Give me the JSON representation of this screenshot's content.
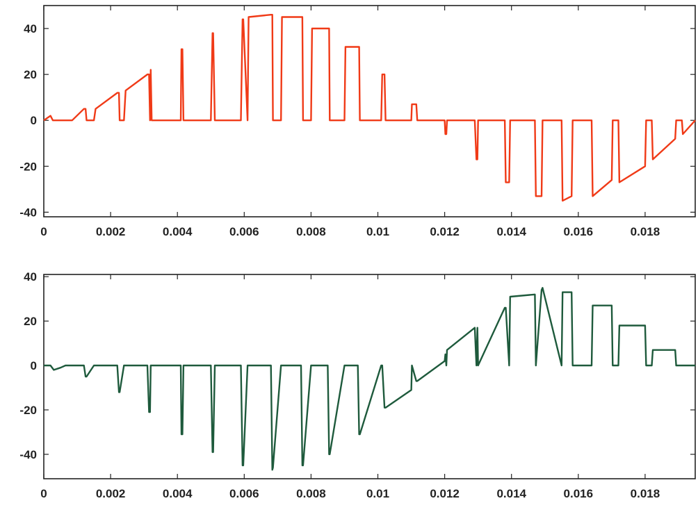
{
  "chart_data": [
    {
      "type": "line",
      "title": "",
      "xlabel": "",
      "ylabel": "",
      "xlim": [
        0,
        0.0195
      ],
      "ylim": [
        -42,
        50
      ],
      "x_ticks": [
        0,
        0.002,
        0.004,
        0.006,
        0.008,
        0.01,
        0.012,
        0.014,
        0.016,
        0.018
      ],
      "x_tick_labels": [
        "0",
        "0.002",
        "0.004",
        "0.006",
        "0.008",
        "0.01",
        "0.012",
        "0.014",
        "0.016",
        "0.018"
      ],
      "y_ticks": [
        -40,
        -20,
        0,
        20,
        40
      ],
      "y_tick_labels": [
        "-40",
        "-20",
        "0",
        "20",
        "40"
      ],
      "grid": false,
      "legend": "none",
      "color": "#f03a17",
      "series": [
        {
          "x": [
            0,
            0.0002,
            0.00027,
            0.0003,
            0.0005,
            0.00085,
            0.0012,
            0.00125,
            0.00128,
            0.0015,
            0.00155,
            0.0022,
            0.00225,
            0.00227,
            0.0024,
            0.00245,
            0.0031,
            0.00315,
            0.00318,
            0.0032,
            0.00323,
            0.0041,
            0.00412,
            0.00415,
            0.00418,
            0.005,
            0.00505,
            0.00507,
            0.00512,
            0.0059,
            0.00595,
            0.00597,
            0.0061,
            0.00613,
            0.0068,
            0.00684,
            0.00686,
            0.0071,
            0.00713,
            0.0077,
            0.00774,
            0.00776,
            0.008,
            0.00803,
            0.0085,
            0.00854,
            0.00856,
            0.009,
            0.00903,
            0.0094,
            0.00944,
            0.00946,
            0.0101,
            0.01013,
            0.0102,
            0.01023,
            0.011,
            0.01102,
            0.01115,
            0.01118,
            0.012,
            0.01202,
            0.01205,
            0.01207,
            0.0129,
            0.01295,
            0.01298,
            0.013,
            0.0138,
            0.01383,
            0.01393,
            0.01396,
            0.0147,
            0.01473,
            0.0149,
            0.01493,
            0.0155,
            0.01553,
            0.0158,
            0.01583,
            0.0164,
            0.01643,
            0.017,
            0.01703,
            0.0172,
            0.01723,
            0.018,
            0.01803,
            0.0182,
            0.01823,
            0.0189,
            0.01893,
            0.0191,
            0.01913,
            0.0195
          ],
          "y": [
            0,
            2,
            0,
            0,
            0,
            0,
            5,
            5,
            0,
            0,
            5,
            12,
            12,
            0,
            0,
            13,
            20,
            20,
            0,
            22,
            0,
            0,
            31,
            31,
            0,
            0,
            38,
            38,
            0,
            0,
            44,
            44,
            0,
            45,
            46,
            46,
            0,
            0,
            45,
            45,
            45,
            0,
            0,
            40,
            40,
            40,
            0,
            0,
            32,
            32,
            32,
            0,
            0,
            20,
            20,
            0,
            0,
            7,
            7,
            0,
            0,
            -6,
            -6,
            0,
            0,
            -17,
            -17,
            0,
            0,
            -27,
            -27,
            0,
            0,
            -33,
            -33,
            0,
            0,
            -35,
            -33,
            0,
            0,
            -33,
            -26,
            0,
            0,
            -27,
            -20,
            0,
            0,
            -17,
            -8,
            0,
            0,
            -6,
            0
          ]
        }
      ]
    },
    {
      "type": "line",
      "title": "",
      "xlabel": "",
      "ylabel": "",
      "xlim": [
        0,
        0.0195
      ],
      "ylim": [
        -51,
        41
      ],
      "x_ticks": [
        0,
        0.002,
        0.004,
        0.006,
        0.008,
        0.01,
        0.012,
        0.014,
        0.016,
        0.018
      ],
      "x_tick_labels": [
        "0",
        "0.002",
        "0.004",
        "0.006",
        "0.008",
        "0.01",
        "0.012",
        "0.014",
        "0.016",
        "0.018"
      ],
      "y_ticks": [
        -40,
        -20,
        0,
        20,
        40
      ],
      "y_tick_labels": [
        "-40",
        "-20",
        "0",
        "20",
        "40"
      ],
      "grid": false,
      "legend": "none",
      "color": "#1e5a3c",
      "series": [
        {
          "x": [
            0,
            0.0002,
            0.0003,
            0.0005,
            0.00065,
            0.0012,
            0.00125,
            0.00128,
            0.0015,
            0.00155,
            0.0022,
            0.00225,
            0.00227,
            0.0024,
            0.00245,
            0.0031,
            0.00315,
            0.00318,
            0.0032,
            0.00323,
            0.0041,
            0.00412,
            0.00415,
            0.00418,
            0.005,
            0.00505,
            0.00507,
            0.00512,
            0.0059,
            0.00595,
            0.00597,
            0.0061,
            0.00613,
            0.0068,
            0.00684,
            0.00686,
            0.0071,
            0.00713,
            0.0077,
            0.00774,
            0.00776,
            0.008,
            0.00803,
            0.0085,
            0.00854,
            0.00856,
            0.009,
            0.00903,
            0.0094,
            0.00944,
            0.00946,
            0.0101,
            0.01013,
            0.0102,
            0.01023,
            0.011,
            0.01102,
            0.01115,
            0.01118,
            0.012,
            0.01202,
            0.01205,
            0.01207,
            0.0129,
            0.01295,
            0.01298,
            0.013,
            0.0138,
            0.01383,
            0.01393,
            0.01396,
            0.0147,
            0.01473,
            0.0149,
            0.01493,
            0.0155,
            0.01553,
            0.0158,
            0.01583,
            0.0164,
            0.01643,
            0.017,
            0.01703,
            0.0172,
            0.01723,
            0.018,
            0.01803,
            0.0182,
            0.01823,
            0.0189,
            0.01893,
            0.0191,
            0.01913,
            0.0195
          ],
          "y": [
            0,
            0,
            -2,
            -1,
            0,
            0,
            -5,
            -5,
            0,
            0,
            0,
            -12,
            -12,
            0,
            0,
            0,
            -21,
            -21,
            0,
            0,
            0,
            -31,
            -31,
            0,
            0,
            -39,
            -39,
            0,
            0,
            -45,
            -45,
            0,
            0,
            0,
            -47,
            -46,
            0,
            0,
            0,
            -45,
            -45,
            0,
            0,
            0,
            -40,
            -40,
            0,
            0,
            0,
            -31,
            -31,
            0,
            0,
            -19,
            -19,
            -11,
            0,
            -7,
            -7,
            2,
            5,
            0,
            7,
            17,
            0,
            17,
            0,
            26,
            26,
            0,
            31,
            32,
            0,
            34,
            35,
            0,
            33,
            33,
            0,
            0,
            27,
            27,
            0,
            0,
            18,
            18,
            0,
            0,
            7,
            7,
            0,
            0,
            0,
            0
          ]
        }
      ]
    }
  ]
}
